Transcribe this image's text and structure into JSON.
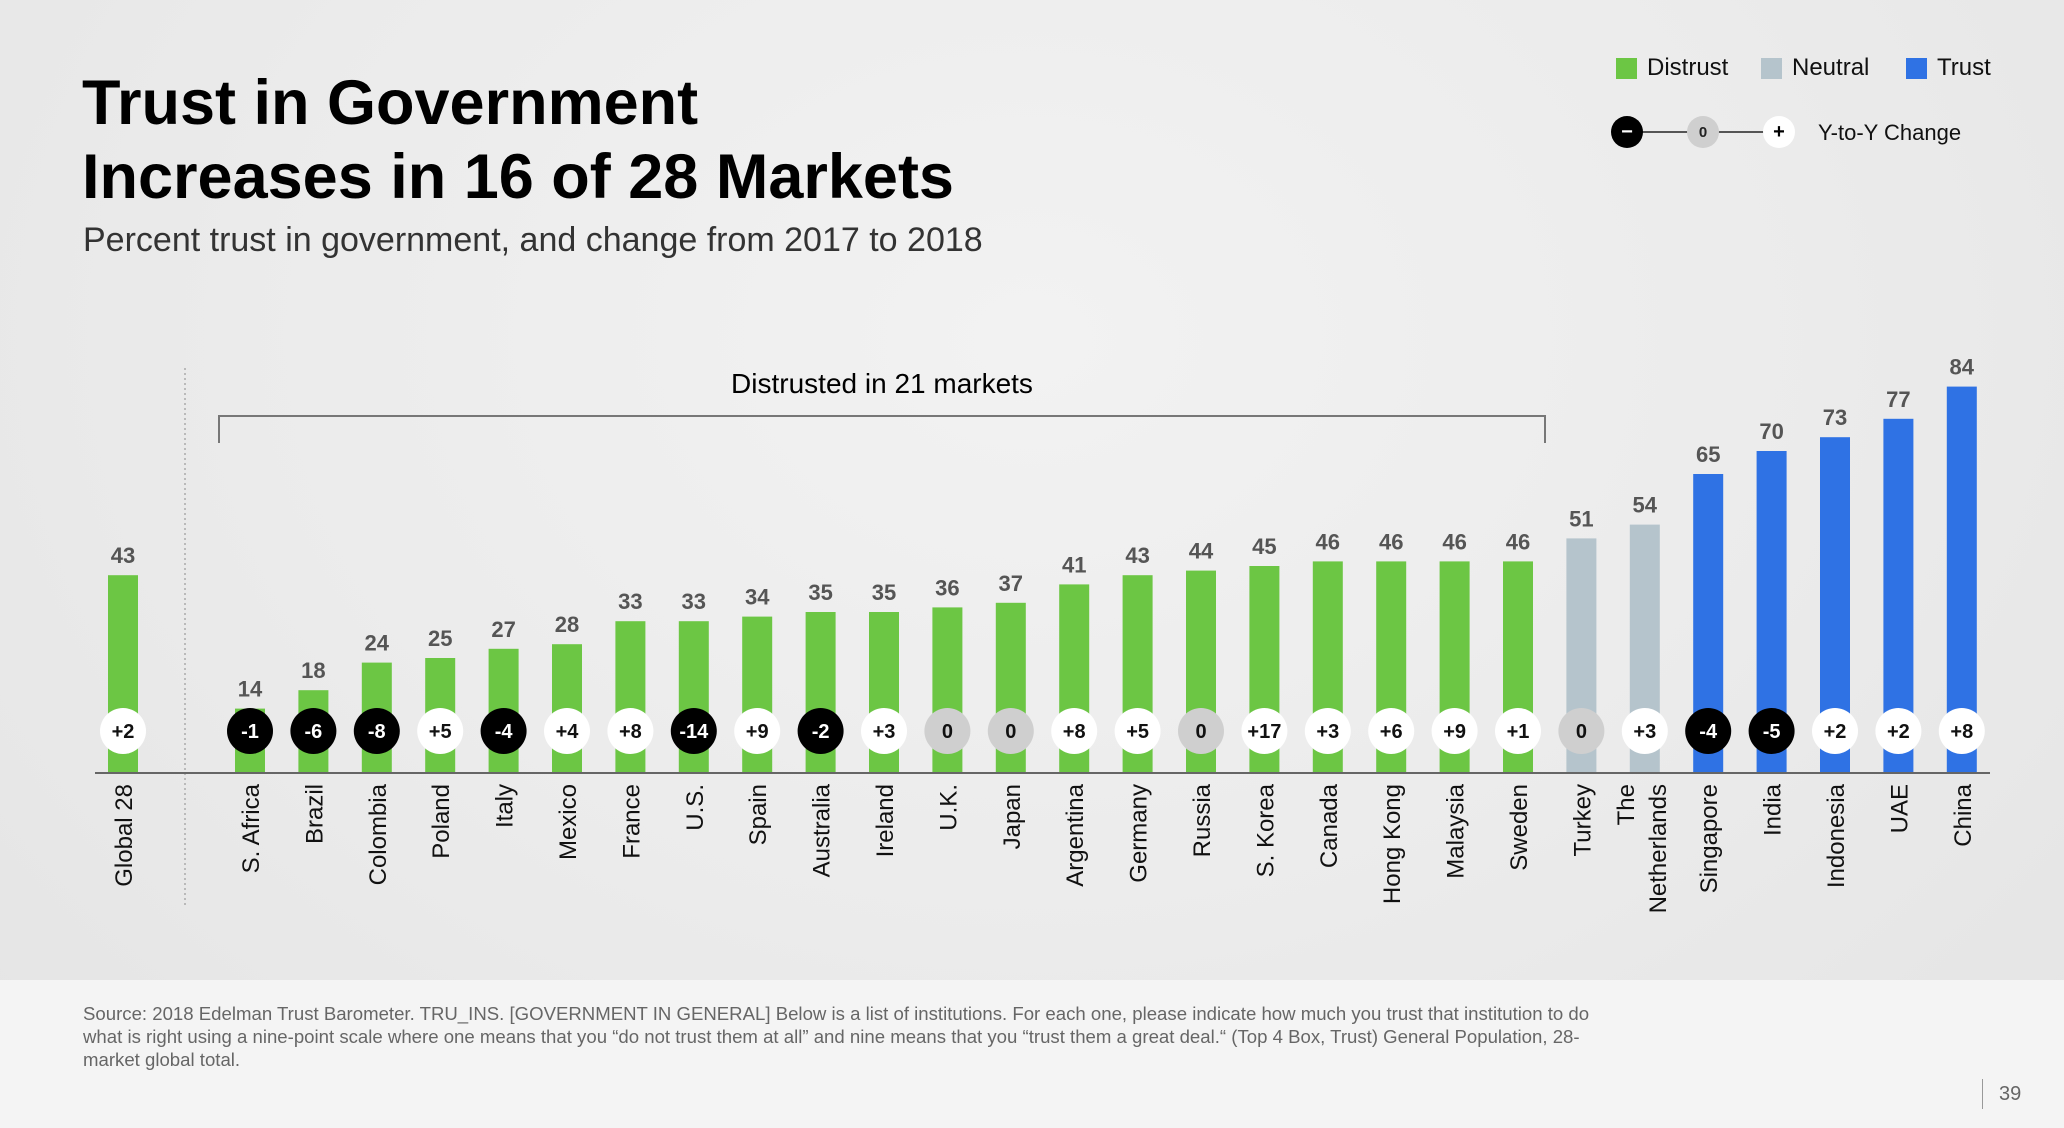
{
  "title_line1": "Trust in Government",
  "title_line2": "Increases in 16 of 28 Markets",
  "subtitle": "Percent trust in government, and change from 2017 to 2018",
  "legend": {
    "distrust": "Distrust",
    "neutral": "Neutral",
    "trust": "Trust",
    "yoy_minus": "−",
    "yoy_zero": "0",
    "yoy_plus": "+",
    "yoy_label": "Y-to-Y Change"
  },
  "colors": {
    "distrust": "#6cc644",
    "neutral": "#b5c4cc",
    "trust": "#2f72e4",
    "yoy_negative": "#000000",
    "yoy_zero": "#cfcfcf",
    "yoy_positive": "#ffffff"
  },
  "bracket_label": "Distrusted in 21 markets",
  "chart_data": {
    "type": "bar",
    "ylim": [
      0,
      100
    ],
    "categories": [
      "Global 28",
      "S. Africa",
      "Brazil",
      "Colombia",
      "Poland",
      "Italy",
      "Mexico",
      "France",
      "U.S.",
      "Spain",
      "Australia",
      "Ireland",
      "U.K.",
      "Japan",
      "Argentina",
      "Germany",
      "Russia",
      "S. Korea",
      "Canada",
      "Hong Kong",
      "Malaysia",
      "Sweden",
      "Turkey",
      "The Netherlands",
      "Singapore",
      "India",
      "Indonesia",
      "UAE",
      "China"
    ],
    "values": [
      43,
      14,
      18,
      24,
      25,
      27,
      28,
      33,
      33,
      34,
      35,
      35,
      36,
      37,
      41,
      43,
      44,
      45,
      46,
      46,
      46,
      46,
      51,
      54,
      65,
      70,
      73,
      77,
      84
    ],
    "yoy_change": [
      "+2",
      "-1",
      "-6",
      "-8",
      "+5",
      "-4",
      "+4",
      "+8",
      "-14",
      "+9",
      "-2",
      "+3",
      "0",
      "0",
      "+8",
      "+5",
      "0",
      "+17",
      "+3",
      "+6",
      "+9",
      "+1",
      "0",
      "+3",
      "-4",
      "-5",
      "+2",
      "+2",
      "+8"
    ],
    "classification": [
      "distrust",
      "distrust",
      "distrust",
      "distrust",
      "distrust",
      "distrust",
      "distrust",
      "distrust",
      "distrust",
      "distrust",
      "distrust",
      "distrust",
      "distrust",
      "distrust",
      "distrust",
      "distrust",
      "distrust",
      "distrust",
      "distrust",
      "distrust",
      "distrust",
      "distrust",
      "neutral",
      "neutral",
      "trust",
      "trust",
      "trust",
      "trust",
      "trust"
    ]
  },
  "source": "Source: 2018 Edelman Trust Barometer. TRU_INS. [GOVERNMENT IN GENERAL] Below is a list of institutions. For each one, please indicate how much you trust that institution to do what is right using a nine-point scale where one means that you “do not trust them at all” and nine means that you “trust them a great deal.“ (Top 4 Box, Trust) General Population, 28-market global total.",
  "page_number": "39"
}
